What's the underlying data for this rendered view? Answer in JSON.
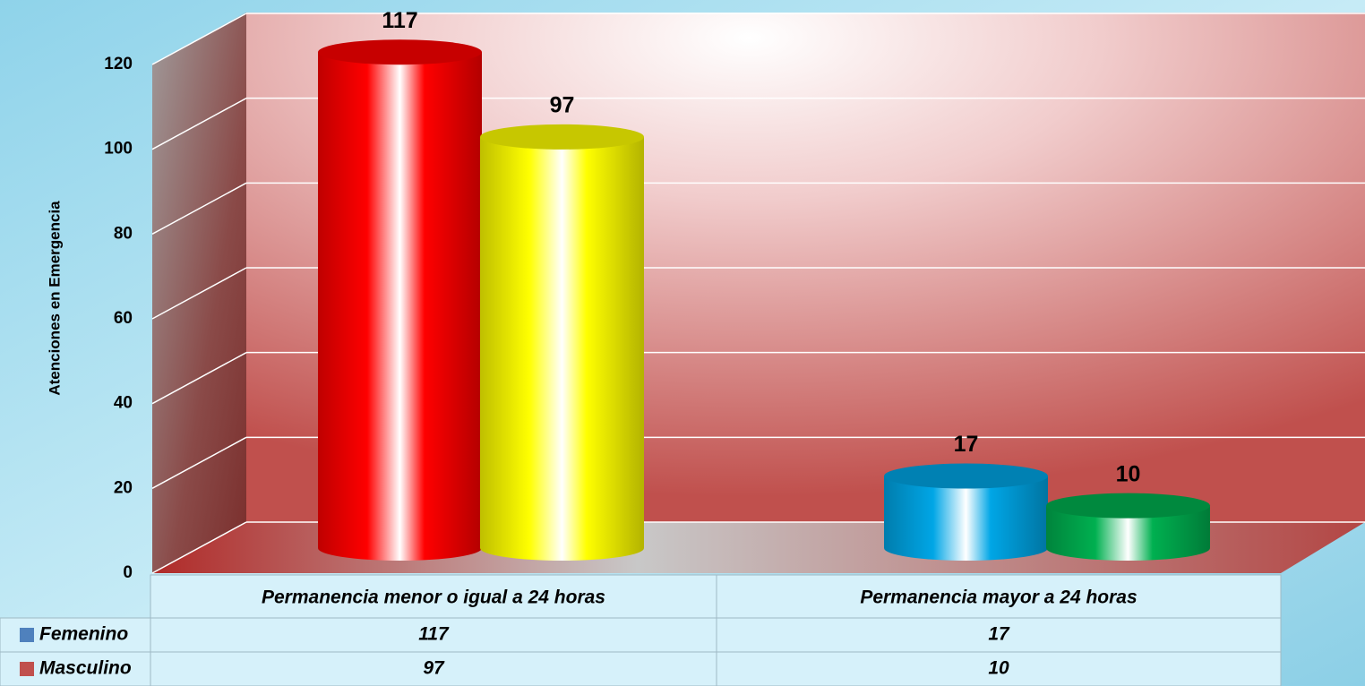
{
  "chart_data": {
    "type": "bar3d",
    "y_label": "Atenciones en Emergencia",
    "categories": [
      "Permanencia menor o igual a 24 horas",
      "Permanencia mayor a 24 horas"
    ],
    "series": [
      {
        "name": "Femenino",
        "color": "#4f81bd",
        "values": [
          117,
          17
        ],
        "bar_colors": [
          "#ff0000",
          "#00a6e6"
        ]
      },
      {
        "name": "Masculino",
        "color": "#c0504d",
        "values": [
          97,
          10
        ],
        "bar_colors": [
          "#ffff00",
          "#00b050"
        ]
      }
    ],
    "ylim": [
      0,
      120
    ],
    "yticks": [
      0,
      20,
      40,
      60,
      80,
      100,
      120
    ],
    "grid": true,
    "data_table": true
  }
}
